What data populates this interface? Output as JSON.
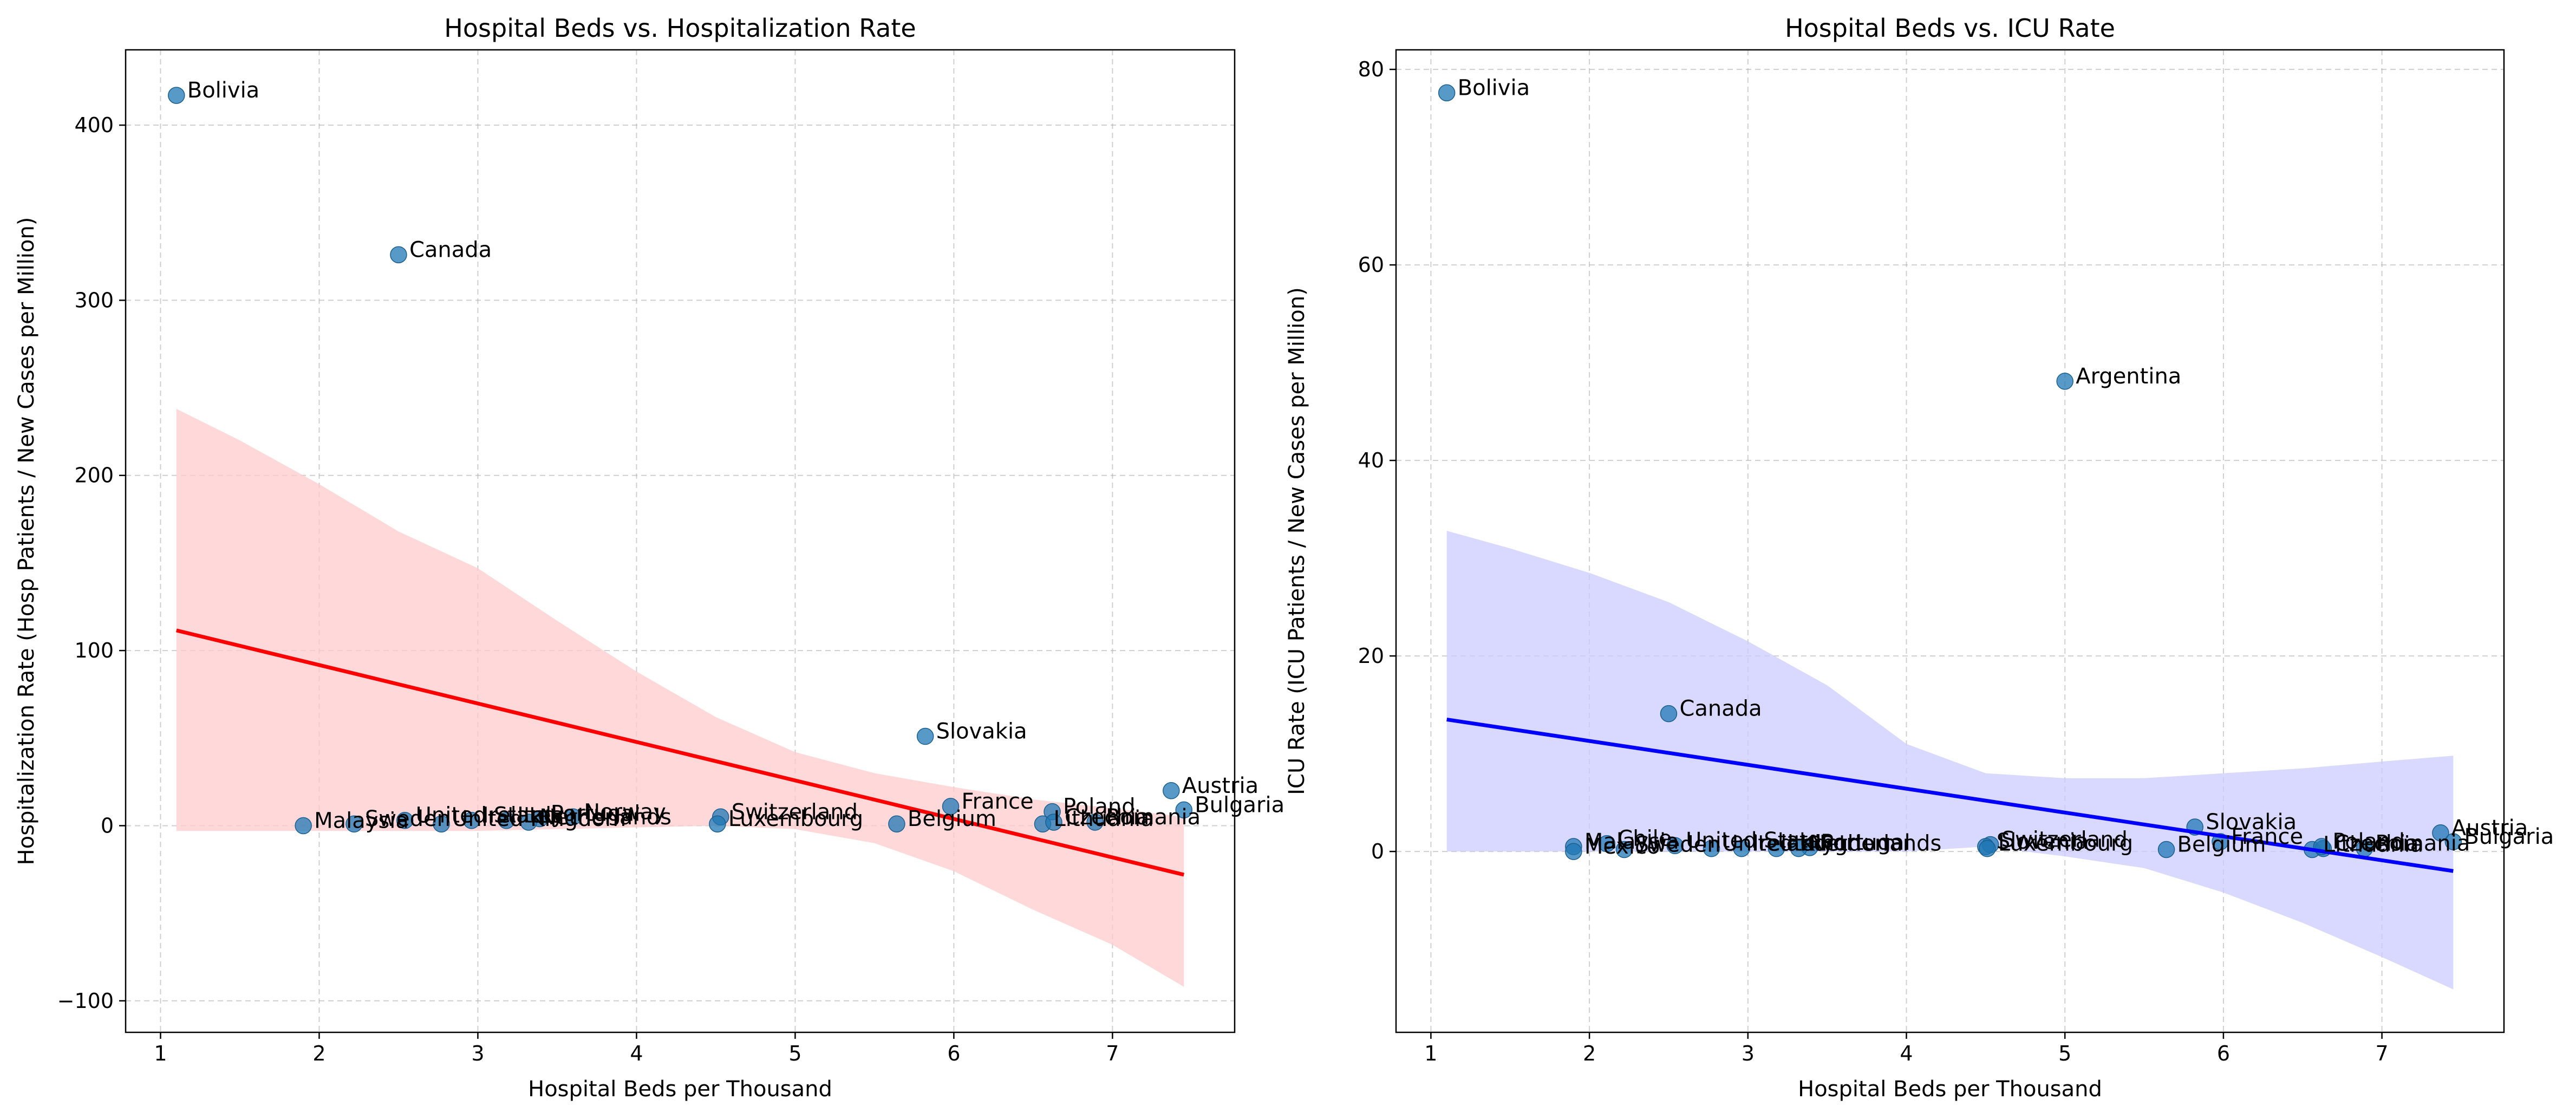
{
  "chart_data": [
    {
      "type": "scatter",
      "title": "Hospital Beds vs. Hospitalization Rate",
      "xlabel": "Hospital Beds per Thousand",
      "ylabel": "Hospitalization Rate (Hosp Patients / New Cases per Million)",
      "xlim": [
        0.78,
        7.77
      ],
      "ylim": [
        -118,
        443
      ],
      "xticks": [
        1,
        2,
        3,
        4,
        5,
        6,
        7
      ],
      "yticks": [
        -100,
        0,
        100,
        200,
        300,
        400
      ],
      "ytick_labels": [
        "−100",
        "0",
        "100",
        "200",
        "300",
        "400"
      ],
      "grid": true,
      "point_color": "#1f77b4",
      "fit_color": "#ff0000",
      "band_color": "#ffcccc",
      "regression": {
        "x": [
          1.1,
          7.45
        ],
        "y": [
          111.5,
          -28
        ]
      },
      "confidence_band": {
        "x": [
          1.1,
          1.5,
          2.0,
          2.5,
          3.0,
          3.5,
          4.0,
          4.5,
          5.0,
          5.5,
          6.0,
          6.5,
          7.0,
          7.45
        ],
        "upper": [
          238,
          220,
          195,
          168,
          147,
          117,
          88,
          62,
          42,
          30,
          22,
          15,
          10,
          5
        ],
        "lower": [
          -3,
          -3,
          -3,
          -3,
          -3,
          -2,
          -1,
          0,
          -2,
          -10,
          -26,
          -48,
          -68,
          -92
        ]
      },
      "points": [
        {
          "label": "Bolivia",
          "x": 1.1,
          "y": 417
        },
        {
          "label": "Canada",
          "x": 2.5,
          "y": 326
        },
        {
          "label": "Slovakia",
          "x": 5.82,
          "y": 51
        },
        {
          "label": "Austria",
          "x": 7.37,
          "y": 20
        },
        {
          "label": "Bulgaria",
          "x": 7.45,
          "y": 9
        },
        {
          "label": "France",
          "x": 5.98,
          "y": 11
        },
        {
          "label": "Poland",
          "x": 6.62,
          "y": 8
        },
        {
          "label": "Switzerland",
          "x": 4.53,
          "y": 5
        },
        {
          "label": "Luxembourg",
          "x": 4.51,
          "y": 1
        },
        {
          "label": "Belgium",
          "x": 5.64,
          "y": 1
        },
        {
          "label": "Lithuania",
          "x": 6.56,
          "y": 1
        },
        {
          "label": "Czechia",
          "x": 6.63,
          "y": 2
        },
        {
          "label": "Romania",
          "x": 6.89,
          "y": 2
        },
        {
          "label": "Malaysia",
          "x": 1.9,
          "y": 0
        },
        {
          "label": "Sweden",
          "x": 2.22,
          "y": 1
        },
        {
          "label": "United States",
          "x": 2.54,
          "y": 3
        },
        {
          "label": "United Kingdom",
          "x": 2.77,
          "y": 1
        },
        {
          "label": "Ireland",
          "x": 2.96,
          "y": 3
        },
        {
          "label": "Italy",
          "x": 3.18,
          "y": 3
        },
        {
          "label": "Portugal",
          "x": 3.39,
          "y": 4
        },
        {
          "label": "Norway",
          "x": 3.6,
          "y": 5
        },
        {
          "label": "Netherlands",
          "x": 3.32,
          "y": 2
        }
      ]
    },
    {
      "type": "scatter",
      "title": "Hospital Beds vs. ICU Rate",
      "xlabel": "Hospital Beds per Thousand",
      "ylabel": "ICU Rate (ICU Patients / New Cases per Million)",
      "xlim": [
        0.78,
        7.77
      ],
      "ylim": [
        -18.5,
        82
      ],
      "xticks": [
        1,
        2,
        3,
        4,
        5,
        6,
        7
      ],
      "yticks": [
        0,
        20,
        40,
        60,
        80
      ],
      "ytick_labels": [
        "0",
        "20",
        "40",
        "60",
        "80"
      ],
      "grid": true,
      "point_color": "#1f77b4",
      "fit_color": "#0000ff",
      "band_color": "#ccccff",
      "regression": {
        "x": [
          1.1,
          7.45
        ],
        "y": [
          13.5,
          -2
        ]
      },
      "confidence_band": {
        "x": [
          1.1,
          1.5,
          2.0,
          2.5,
          3.0,
          3.5,
          4.0,
          4.5,
          5.0,
          5.5,
          6.0,
          6.5,
          7.0,
          7.45
        ],
        "upper": [
          32.8,
          31,
          28.5,
          25.5,
          21.5,
          17,
          11,
          8,
          7.5,
          7.5,
          8,
          8.5,
          9.2,
          9.8
        ],
        "lower": [
          0,
          0,
          0,
          0,
          0,
          0,
          0,
          0.5,
          -0.5,
          -1.7,
          -4.2,
          -7.3,
          -10.8,
          -14.1
        ]
      },
      "points": [
        {
          "label": "Bolivia",
          "x": 1.1,
          "y": 77.6
        },
        {
          "label": "Argentina",
          "x": 5.0,
          "y": 48.1
        },
        {
          "label": "Canada",
          "x": 2.5,
          "y": 14.1
        },
        {
          "label": "Slovakia",
          "x": 5.82,
          "y": 2.5
        },
        {
          "label": "Austria",
          "x": 7.37,
          "y": 1.9
        },
        {
          "label": "Bulgaria",
          "x": 7.45,
          "y": 1.0
        },
        {
          "label": "France",
          "x": 5.98,
          "y": 1.0
        },
        {
          "label": "Lithuania",
          "x": 6.56,
          "y": 0.2
        },
        {
          "label": "Czechia",
          "x": 6.63,
          "y": 0.3
        },
        {
          "label": "Romania",
          "x": 6.89,
          "y": 0.3
        },
        {
          "label": "Belgium",
          "x": 5.64,
          "y": 0.2
        },
        {
          "label": "Poland",
          "x": 6.62,
          "y": 0.5
        },
        {
          "label": "Switzerland",
          "x": 4.53,
          "y": 0.7
        },
        {
          "label": "Slovenia",
          "x": 4.5,
          "y": 0.5
        },
        {
          "label": "Luxembourg",
          "x": 4.51,
          "y": 0.3
        },
        {
          "label": "Malaysia",
          "x": 1.9,
          "y": 0.5
        },
        {
          "label": "Mexico",
          "x": 1.9,
          "y": 0.0
        },
        {
          "label": "Chile",
          "x": 2.11,
          "y": 0.8
        },
        {
          "label": "Sweden",
          "x": 2.22,
          "y": 0.2
        },
        {
          "label": "United States",
          "x": 2.54,
          "y": 0.6
        },
        {
          "label": "United Kingdom",
          "x": 2.77,
          "y": 0.3
        },
        {
          "label": "Ireland",
          "x": 2.96,
          "y": 0.3
        },
        {
          "label": "Italy",
          "x": 3.18,
          "y": 0.3
        },
        {
          "label": "Portugal",
          "x": 3.39,
          "y": 0.4
        },
        {
          "label": "Netherlands",
          "x": 3.32,
          "y": 0.3
        }
      ]
    }
  ]
}
